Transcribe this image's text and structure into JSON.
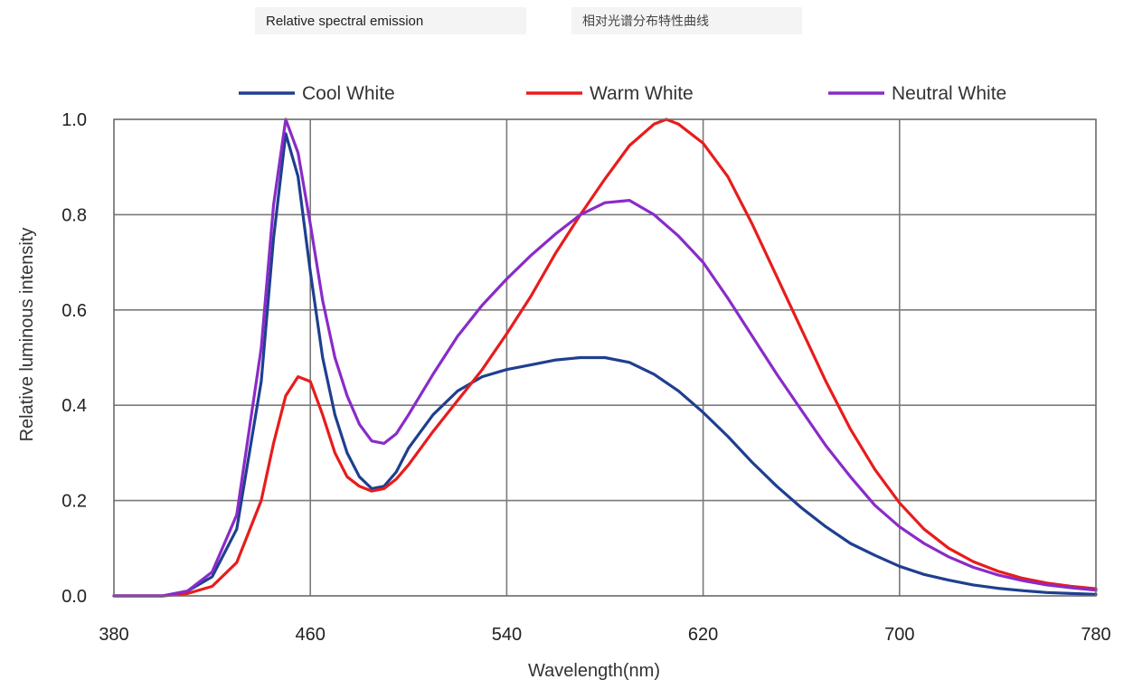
{
  "chart_data": {
    "type": "line",
    "title": "Relative spectral emission",
    "subtitle": "相对光谱分布特性曲线",
    "xlabel": "Wavelength(nm)",
    "ylabel": "Relative luminous intensity",
    "xlim": [
      380,
      780
    ],
    "ylim": [
      0.0,
      1.0
    ],
    "x_ticks": [
      380,
      460,
      540,
      620,
      700,
      780
    ],
    "y_ticks": [
      0.0,
      0.2,
      0.4,
      0.6,
      0.8,
      1.0
    ],
    "x_tick_labels": [
      "380",
      "460",
      "540",
      "620",
      "700",
      "780"
    ],
    "y_tick_labels": [
      "0.0",
      "0.2",
      "0.4",
      "0.6",
      "0.8",
      "1.0"
    ],
    "grid": true,
    "legend_position": "top",
    "series": [
      {
        "name": "Cool White",
        "color": "#1f3f8f",
        "points": [
          [
            380,
            0
          ],
          [
            400,
            0
          ],
          [
            410,
            0.01
          ],
          [
            420,
            0.04
          ],
          [
            430,
            0.14
          ],
          [
            440,
            0.45
          ],
          [
            445,
            0.75
          ],
          [
            450,
            0.97
          ],
          [
            455,
            0.88
          ],
          [
            460,
            0.68
          ],
          [
            465,
            0.5
          ],
          [
            470,
            0.38
          ],
          [
            475,
            0.3
          ],
          [
            480,
            0.25
          ],
          [
            485,
            0.225
          ],
          [
            490,
            0.23
          ],
          [
            495,
            0.26
          ],
          [
            500,
            0.31
          ],
          [
            510,
            0.38
          ],
          [
            520,
            0.43
          ],
          [
            530,
            0.46
          ],
          [
            540,
            0.475
          ],
          [
            550,
            0.485
          ],
          [
            560,
            0.495
          ],
          [
            570,
            0.5
          ],
          [
            580,
            0.5
          ],
          [
            590,
            0.49
          ],
          [
            600,
            0.465
          ],
          [
            610,
            0.43
          ],
          [
            620,
            0.385
          ],
          [
            630,
            0.335
          ],
          [
            640,
            0.28
          ],
          [
            650,
            0.23
          ],
          [
            660,
            0.185
          ],
          [
            670,
            0.145
          ],
          [
            680,
            0.11
          ],
          [
            690,
            0.085
          ],
          [
            700,
            0.062
          ],
          [
            710,
            0.045
          ],
          [
            720,
            0.033
          ],
          [
            730,
            0.023
          ],
          [
            740,
            0.016
          ],
          [
            750,
            0.011
          ],
          [
            760,
            0.007
          ],
          [
            770,
            0.005
          ],
          [
            780,
            0.003
          ]
        ]
      },
      {
        "name": "Warm White",
        "color": "#e81c1c",
        "points": [
          [
            380,
            0
          ],
          [
            400,
            0
          ],
          [
            410,
            0.005
          ],
          [
            420,
            0.02
          ],
          [
            430,
            0.07
          ],
          [
            440,
            0.2
          ],
          [
            445,
            0.32
          ],
          [
            450,
            0.42
          ],
          [
            455,
            0.46
          ],
          [
            460,
            0.45
          ],
          [
            465,
            0.38
          ],
          [
            470,
            0.3
          ],
          [
            475,
            0.25
          ],
          [
            480,
            0.23
          ],
          [
            485,
            0.22
          ],
          [
            490,
            0.225
          ],
          [
            495,
            0.245
          ],
          [
            500,
            0.275
          ],
          [
            510,
            0.345
          ],
          [
            520,
            0.41
          ],
          [
            530,
            0.475
          ],
          [
            540,
            0.55
          ],
          [
            550,
            0.63
          ],
          [
            560,
            0.72
          ],
          [
            570,
            0.8
          ],
          [
            580,
            0.875
          ],
          [
            590,
            0.945
          ],
          [
            600,
            0.99
          ],
          [
            605,
            1.0
          ],
          [
            610,
            0.99
          ],
          [
            620,
            0.95
          ],
          [
            630,
            0.88
          ],
          [
            640,
            0.78
          ],
          [
            650,
            0.67
          ],
          [
            660,
            0.56
          ],
          [
            670,
            0.45
          ],
          [
            680,
            0.35
          ],
          [
            690,
            0.265
          ],
          [
            700,
            0.195
          ],
          [
            710,
            0.14
          ],
          [
            720,
            0.1
          ],
          [
            730,
            0.072
          ],
          [
            740,
            0.052
          ],
          [
            750,
            0.037
          ],
          [
            760,
            0.027
          ],
          [
            770,
            0.02
          ],
          [
            780,
            0.015
          ]
        ]
      },
      {
        "name": "Neutral White",
        "color": "#8a2bc8",
        "points": [
          [
            380,
            0
          ],
          [
            400,
            0
          ],
          [
            410,
            0.01
          ],
          [
            420,
            0.05
          ],
          [
            430,
            0.17
          ],
          [
            440,
            0.52
          ],
          [
            445,
            0.82
          ],
          [
            450,
            1.0
          ],
          [
            455,
            0.93
          ],
          [
            460,
            0.78
          ],
          [
            465,
            0.62
          ],
          [
            470,
            0.5
          ],
          [
            475,
            0.42
          ],
          [
            480,
            0.36
          ],
          [
            485,
            0.325
          ],
          [
            490,
            0.32
          ],
          [
            495,
            0.34
          ],
          [
            500,
            0.38
          ],
          [
            510,
            0.465
          ],
          [
            520,
            0.545
          ],
          [
            530,
            0.61
          ],
          [
            540,
            0.665
          ],
          [
            550,
            0.715
          ],
          [
            560,
            0.76
          ],
          [
            570,
            0.8
          ],
          [
            580,
            0.825
          ],
          [
            590,
            0.83
          ],
          [
            600,
            0.8
          ],
          [
            610,
            0.755
          ],
          [
            620,
            0.7
          ],
          [
            630,
            0.625
          ],
          [
            640,
            0.545
          ],
          [
            650,
            0.465
          ],
          [
            660,
            0.39
          ],
          [
            670,
            0.315
          ],
          [
            680,
            0.25
          ],
          [
            690,
            0.19
          ],
          [
            700,
            0.145
          ],
          [
            710,
            0.11
          ],
          [
            720,
            0.082
          ],
          [
            730,
            0.06
          ],
          [
            740,
            0.044
          ],
          [
            750,
            0.032
          ],
          [
            760,
            0.023
          ],
          [
            770,
            0.017
          ],
          [
            780,
            0.012
          ]
        ]
      }
    ]
  }
}
